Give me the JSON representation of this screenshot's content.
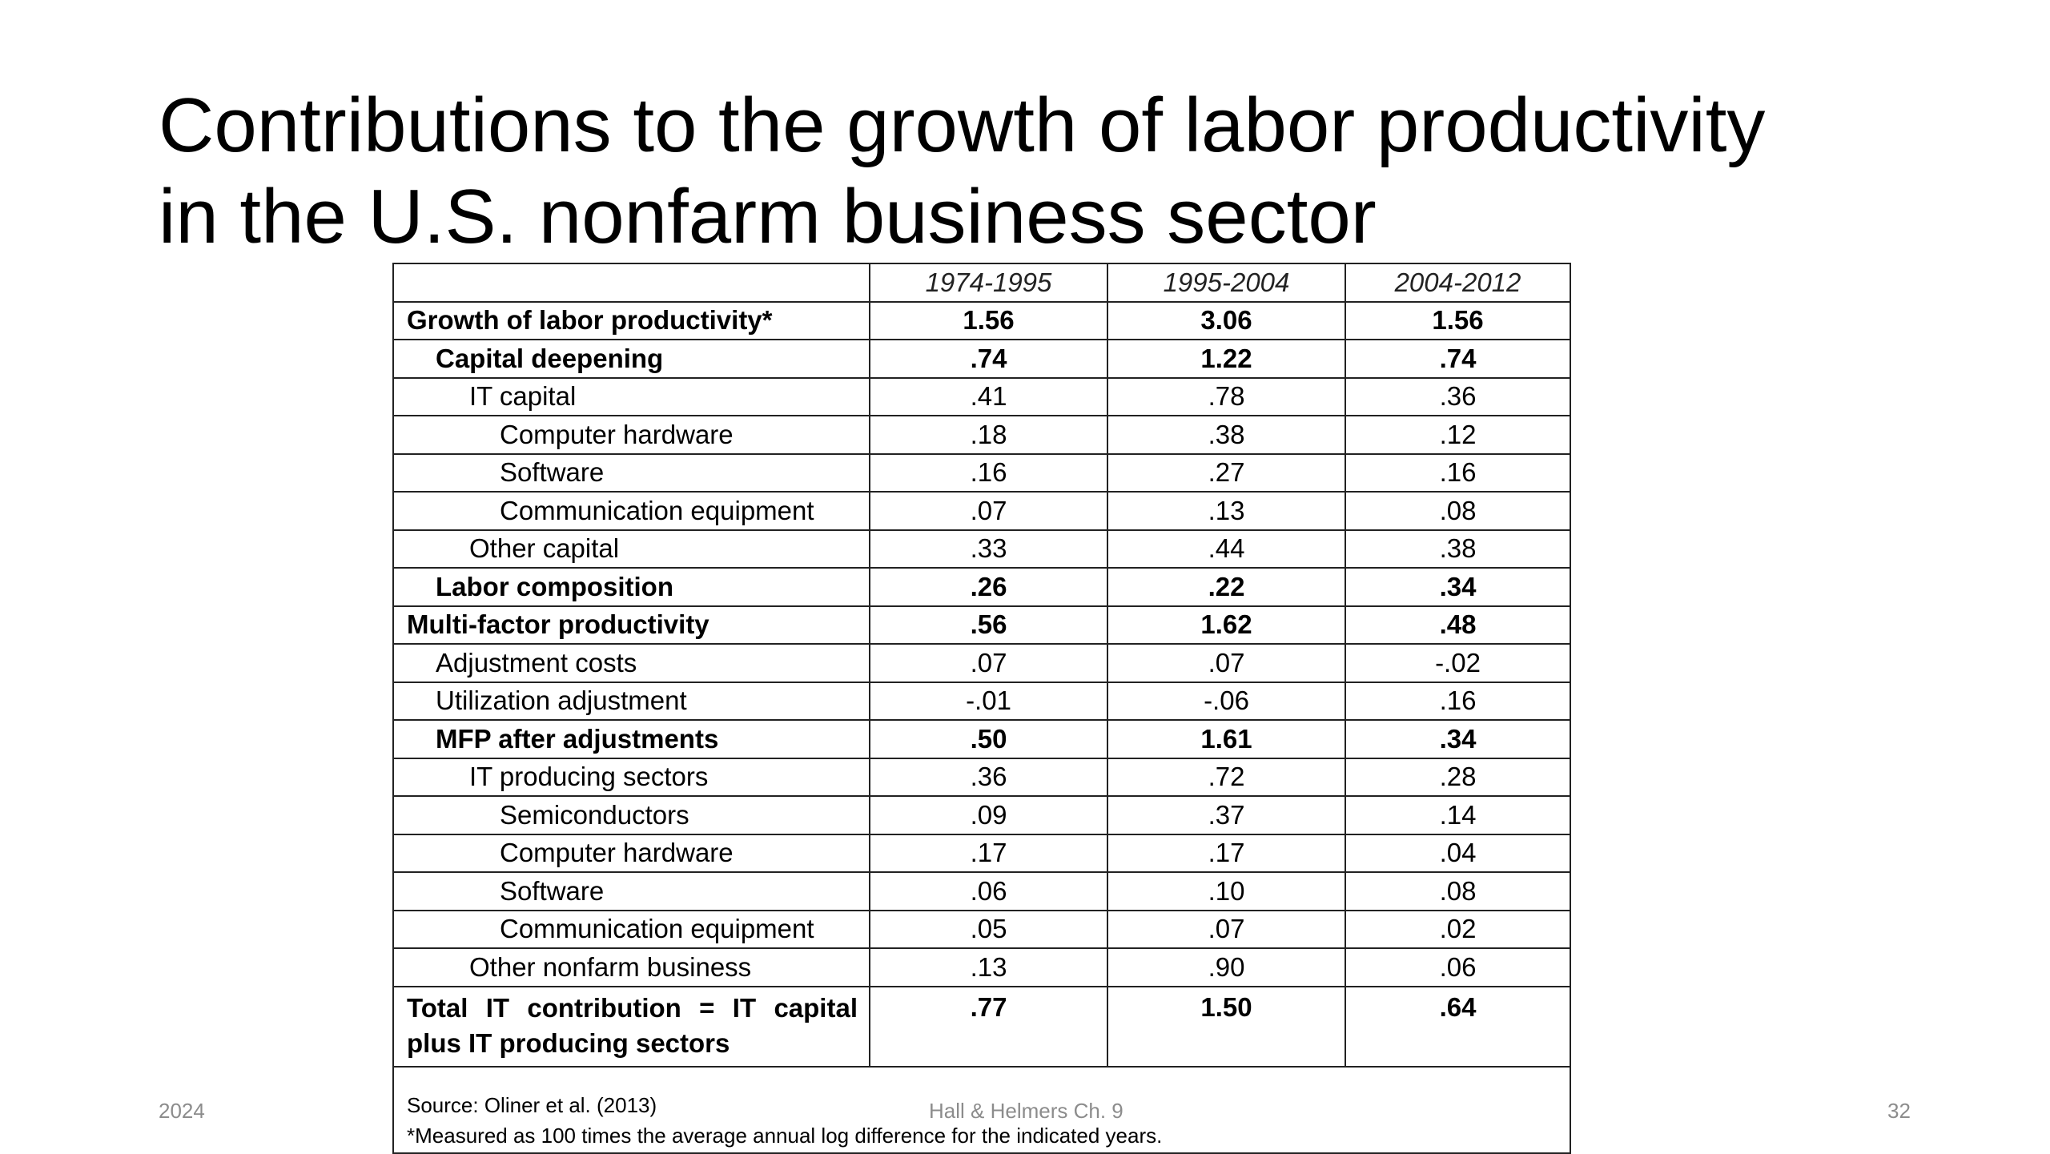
{
  "slide": {
    "title_line1": "Contributions to the growth of labor productivity",
    "title_line2": "in the U.S. nonfarm business sector",
    "footer_date": "2024",
    "footer_center": "Hall & Helmers Ch. 9",
    "page_number": "32"
  },
  "table": {
    "columns": [
      "",
      "1974-1995",
      "1995-2004",
      "2004-2012"
    ],
    "rows": [
      {
        "label": "Growth of labor productivity*",
        "values": [
          "1.56",
          "3.06",
          "1.56"
        ]
      },
      {
        "label": "Capital deepening",
        "values": [
          ".74",
          "1.22",
          ".74"
        ]
      },
      {
        "label": "IT capital",
        "values": [
          ".41",
          ".78",
          ".36"
        ]
      },
      {
        "label": "Computer hardware",
        "values": [
          ".18",
          ".38",
          ".12"
        ]
      },
      {
        "label": "Software",
        "values": [
          ".16",
          ".27",
          ".16"
        ]
      },
      {
        "label": "Communication equipment",
        "values": [
          ".07",
          ".13",
          ".08"
        ]
      },
      {
        "label": "Other capital",
        "values": [
          ".33",
          ".44",
          ".38"
        ]
      },
      {
        "label": "Labor composition",
        "values": [
          ".26",
          ".22",
          ".34"
        ]
      },
      {
        "label": "Multi-factor productivity",
        "values": [
          ".56",
          "1.62",
          ".48"
        ]
      },
      {
        "label": "Adjustment costs",
        "values": [
          ".07",
          ".07",
          "-.02"
        ]
      },
      {
        "label": "Utilization adjustment",
        "values": [
          "-.01",
          "-.06",
          ".16"
        ]
      },
      {
        "label": "MFP after adjustments",
        "values": [
          ".50",
          "1.61",
          ".34"
        ]
      },
      {
        "label": "IT producing sectors",
        "values": [
          ".36",
          ".72",
          ".28"
        ]
      },
      {
        "label": "Semiconductors",
        "values": [
          ".09",
          ".37",
          ".14"
        ]
      },
      {
        "label": "Computer hardware",
        "values": [
          ".17",
          ".17",
          ".04"
        ]
      },
      {
        "label": "Software",
        "values": [
          ".06",
          ".10",
          ".08"
        ]
      },
      {
        "label": "Communication equipment",
        "values": [
          ".05",
          ".07",
          ".02"
        ]
      },
      {
        "label": "Other nonfarm business",
        "values": [
          ".13",
          ".90",
          ".06"
        ]
      },
      {
        "label": "Total IT contribution = IT capital plus IT producing sectors",
        "values": [
          ".77",
          "1.50",
          ".64"
        ]
      }
    ],
    "source": "Source: Oliner et al. (2013)",
    "footnote": "*Measured as 100 times the average annual log difference for the indicated years."
  }
}
